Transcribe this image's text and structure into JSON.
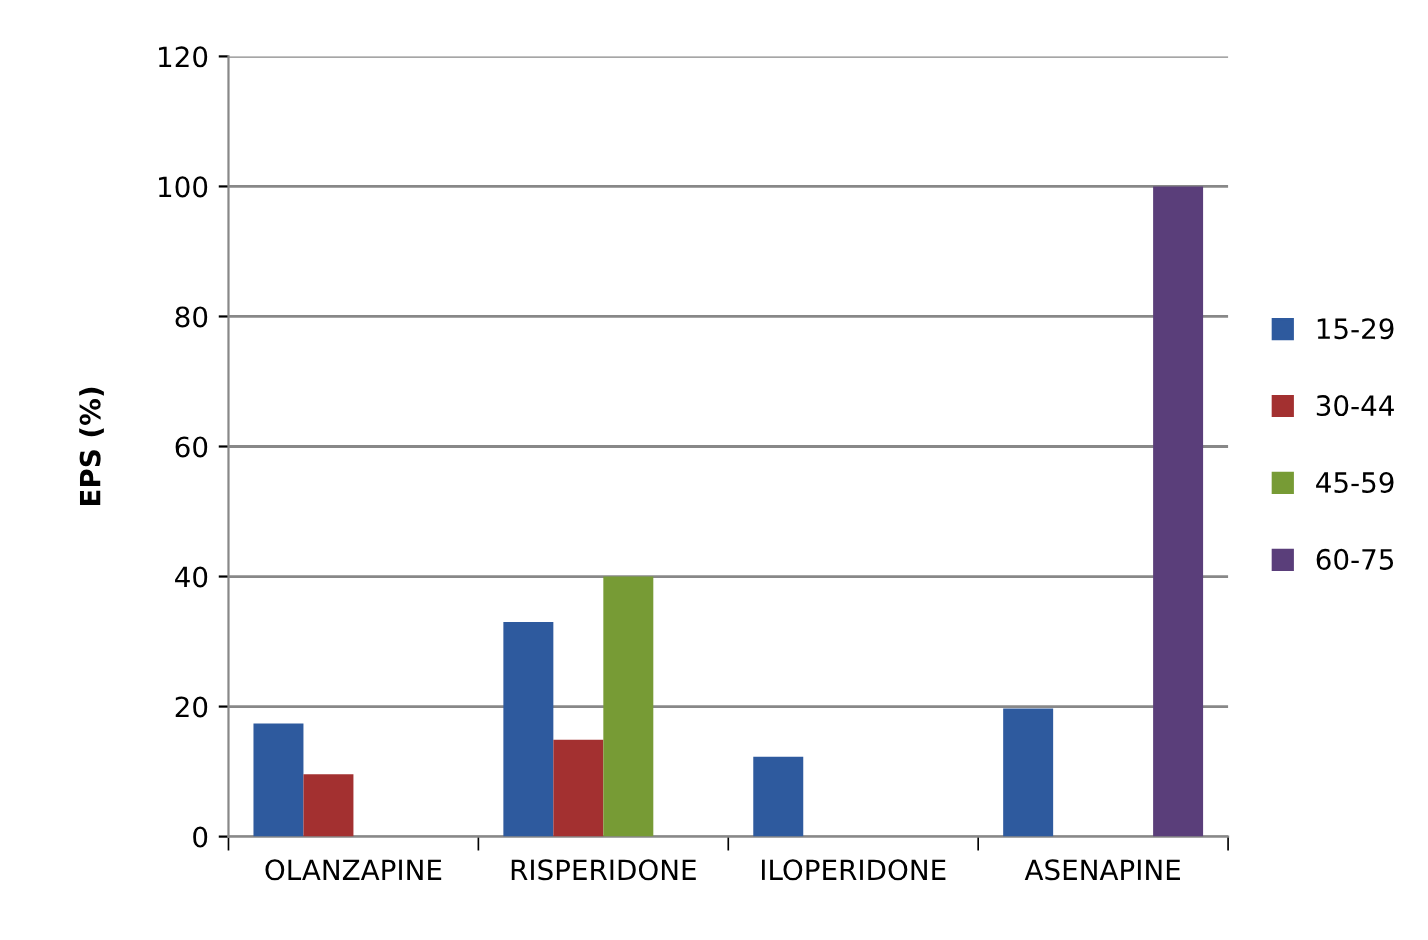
{
  "chart_data": {
    "type": "bar",
    "ylabel": "EPS (%)",
    "categories": [
      "OLANZAPINE",
      "RISPERIDONE",
      "ILOPERIDONE",
      "ASENAPINE"
    ],
    "series": [
      {
        "name": "15-29",
        "color": "#2e5a9e",
        "values": [
          17.4,
          33,
          12.3,
          19.7
        ]
      },
      {
        "name": "30-44",
        "color": "#a33030",
        "values": [
          9.6,
          14.9,
          null,
          null
        ]
      },
      {
        "name": "45-59",
        "color": "#779b35",
        "values": [
          null,
          40,
          null,
          null
        ]
      },
      {
        "name": "60-75",
        "color": "#5a3e7a",
        "values": [
          null,
          null,
          null,
          100
        ]
      }
    ],
    "ylim": [
      0,
      120
    ],
    "yticks": [
      0,
      20,
      40,
      60,
      80,
      100,
      120
    ],
    "grid": "y",
    "legend": "right"
  }
}
